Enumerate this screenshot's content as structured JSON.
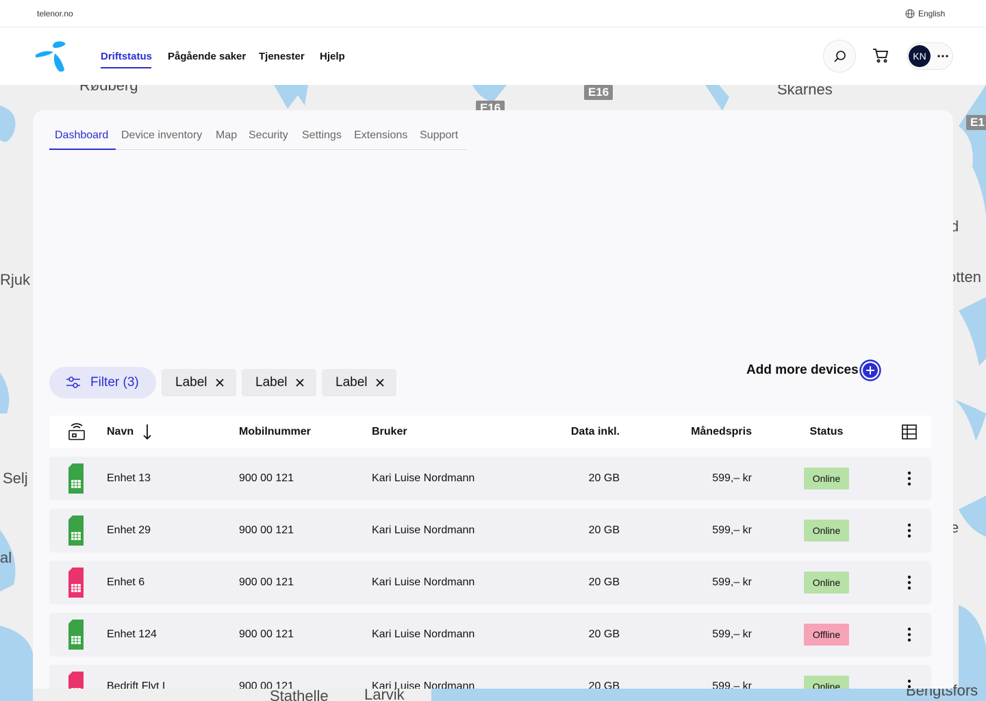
{
  "topbar": {
    "site": "telenor.no",
    "language": "English"
  },
  "header": {
    "nav": [
      "Driftstatus",
      "Pågående saker",
      "Tjenester",
      "Hjelp"
    ],
    "avatar": "KN"
  },
  "map_labels": [
    "Rødberg",
    "E16",
    "E16",
    "Skarnes",
    "E1",
    "d",
    "Rjuk",
    "otten",
    "Selj",
    "e",
    "al",
    "Stathelle",
    "Larvik",
    "Bengtsfors"
  ],
  "tabs": [
    "Dashboard",
    "Device inventory",
    "Map",
    "Security",
    "Settings",
    "Extensions",
    "Support"
  ],
  "filters": {
    "filter": "Filter (3)",
    "chips": [
      "Label",
      "Label",
      "Label"
    ]
  },
  "add_devices": "Add more devices",
  "table": {
    "columns": [
      "Navn",
      "Mobilnummer",
      "Bruker",
      "Data inkl.",
      "Månedspris",
      "Status"
    ],
    "rows": [
      {
        "name": "Enhet 13",
        "number": "900 00 121",
        "user": "Kari Luise Nordmann",
        "data": "20 GB",
        "price": "599,– kr",
        "status": "Online",
        "status_color": "#b7e1a6",
        "sim_color": "#3aa346"
      },
      {
        "name": "Enhet 29",
        "number": "900 00 121",
        "user": "Kari Luise Nordmann",
        "data": "20 GB",
        "price": "599,– kr",
        "status": "Online",
        "status_color": "#b7e1a6",
        "sim_color": "#3aa346"
      },
      {
        "name": "Enhet 6",
        "number": "900 00 121",
        "user": "Kari Luise Nordmann",
        "data": "20 GB",
        "price": "599,– kr",
        "status": "Online",
        "status_color": "#b7e1a6",
        "sim_color": "#e9336c"
      },
      {
        "name": "Enhet 124",
        "number": "900 00 121",
        "user": "Kari Luise Nordmann",
        "data": "20 GB",
        "price": "599,– kr",
        "status": "Offline",
        "status_color": "#f6a3b7",
        "sim_color": "#3aa346"
      },
      {
        "name": "Bedrift Flyt I",
        "number": "900 00 121",
        "user": "Kari Luise Nordmann",
        "data": "20 GB",
        "price": "599,– kr",
        "status": "Online",
        "status_color": "#b7e1a6",
        "sim_color": "#e9336c"
      }
    ]
  }
}
